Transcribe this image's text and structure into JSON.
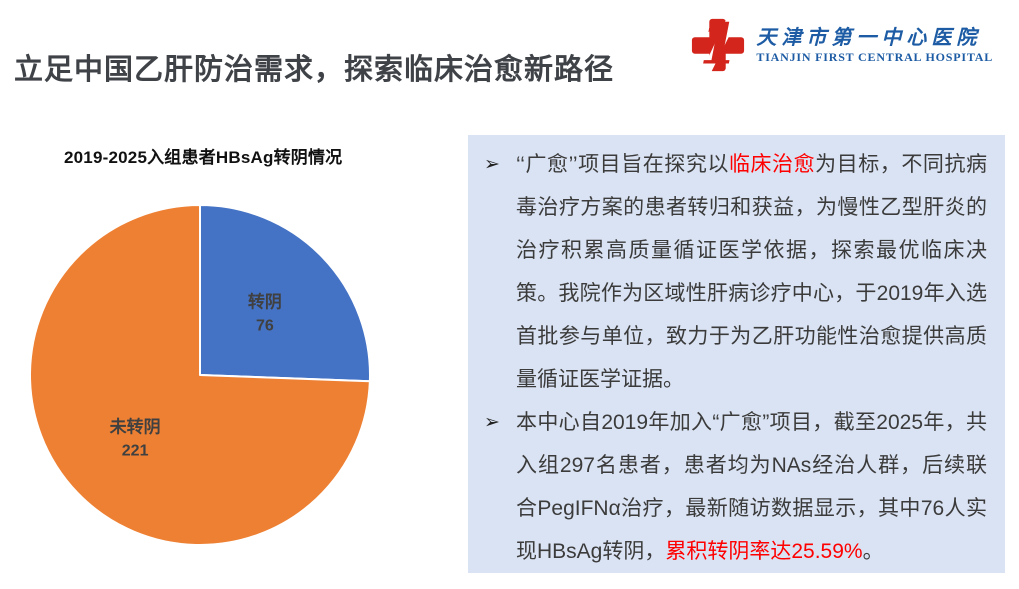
{
  "slide": {
    "title": "立足中国乙肝防治需求，探索临床治愈新路径",
    "title_color": "#3F4348",
    "background": "#FFFFFF"
  },
  "logo": {
    "cn": "天津市第一中心医院",
    "en": "TIANJIN FIRST CENTRAL HOSPITAL",
    "icon": "red-cross-with-numeral-1",
    "red": "#D4251C",
    "blue": "#1D5CA4"
  },
  "chart_data": {
    "type": "pie",
    "title": "2019-2025入组患者HBsAg转阴情况",
    "total": 297,
    "start_angle_deg": 0,
    "direction": "clockwise",
    "legend": "none",
    "separator_color": "#FFFFFF",
    "label_color": "#404040",
    "slices": [
      {
        "label": "转阴",
        "value": 76,
        "color": "#4472C4"
      },
      {
        "label": "未转阴",
        "value": 221,
        "color": "#EE8033"
      }
    ]
  },
  "notes": {
    "background": "#DAE3F3",
    "marker": "➢",
    "text_color": "#3B3B3B",
    "accent_red": "#FF0000",
    "bullets": [
      {
        "segments": [
          {
            "text": "‘‘广愈’’项目旨在探究以"
          },
          {
            "text": "临床治愈",
            "red": true
          },
          {
            "text": "为目标，不同抗病毒治疗方案的患者转归和获益，为慢性乙型肝炎的治疗积累高质量循证医学依据，探索最优临床决策。我院作为区域性肝病诊疗中心，于2019年入选首批参与单位，致力于为乙肝功能性治愈提供高质量循证医学证据。"
          }
        ]
      },
      {
        "segments": [
          {
            "text": "本中心自2019年加入“广愈”项目，截至2025年，共入组297名患者，患者均为NAs经治人群，后续联合PegIFNα治疗，最新随访数据显示，其中76人实现HBsAg转阴，"
          },
          {
            "text": "累积转阴率达25.59%",
            "red": true
          },
          {
            "text": "。"
          }
        ]
      }
    ]
  }
}
